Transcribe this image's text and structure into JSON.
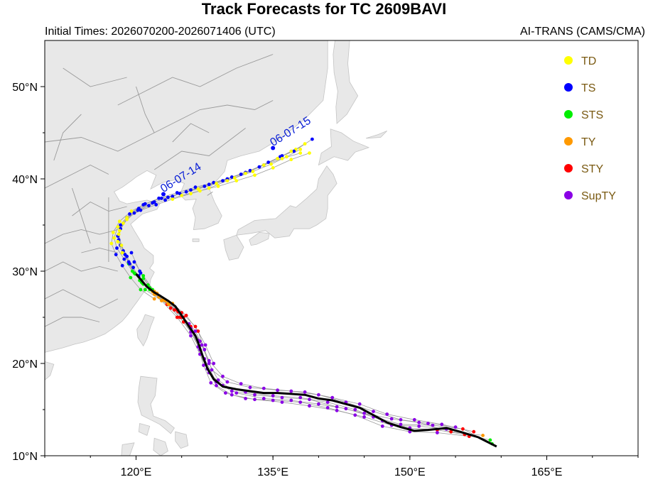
{
  "header": {
    "title": "Track Forecasts for TC 2609BAVI",
    "initial_times": "Initial Times: 2026070200-2026071406 (UTC)",
    "source": "AI-TRANS (CAMS/CMA)"
  },
  "map": {
    "lon_range": [
      110,
      175
    ],
    "lat_range": [
      10,
      55
    ],
    "lat_ticks": [
      "10°N",
      "20°N",
      "30°N",
      "40°N",
      "50°N"
    ],
    "lon_ticks": [
      "120°E",
      "135°E",
      "150°E",
      "165°E"
    ],
    "land_color": "#e8e8e8",
    "land_stroke": "#c4c4c4",
    "ocean_color": "#ffffff",
    "border_color": "#9a9a9a"
  },
  "legend": {
    "items": [
      {
        "label": "TD",
        "color": "#ffff00"
      },
      {
        "label": "TS",
        "color": "#0000ff"
      },
      {
        "label": "STS",
        "color": "#00ee00"
      },
      {
        "label": "TY",
        "color": "#ff9900"
      },
      {
        "label": "STY",
        "color": "#ff0000"
      },
      {
        "label": "SupTY",
        "color": "#8a00e6"
      }
    ]
  },
  "date_labels": [
    {
      "text": "06-07-14",
      "lon": 123.0,
      "lat": 38.5
    },
    {
      "text": "06-07-15",
      "lon": 135.0,
      "lat": 43.5
    }
  ],
  "observed_track": {
    "color": "#000000",
    "points": [
      [
        159.5,
        11.0
      ],
      [
        157.5,
        12.0
      ],
      [
        155.5,
        12.6
      ],
      [
        154.0,
        13.0
      ],
      [
        152.0,
        12.8
      ],
      [
        150.5,
        12.7
      ],
      [
        149.0,
        13.1
      ],
      [
        147.5,
        13.6
      ],
      [
        146.0,
        14.4
      ],
      [
        144.5,
        15.2
      ],
      [
        143.0,
        15.6
      ],
      [
        141.5,
        16.0
      ],
      [
        140.0,
        16.2
      ],
      [
        138.5,
        16.6
      ],
      [
        137.0,
        16.7
      ],
      [
        135.5,
        16.8
      ],
      [
        134.0,
        16.8
      ],
      [
        132.5,
        17.0
      ],
      [
        131.0,
        17.2
      ],
      [
        129.5,
        17.5
      ],
      [
        128.5,
        18.3
      ],
      [
        127.8,
        19.5
      ],
      [
        127.3,
        20.8
      ],
      [
        126.9,
        22.0
      ],
      [
        126.5,
        23.0
      ],
      [
        125.8,
        24.0
      ],
      [
        125.0,
        25.2
      ],
      [
        124.3,
        26.2
      ],
      [
        123.5,
        26.8
      ],
      [
        122.7,
        27.3
      ],
      [
        122.0,
        27.7
      ],
      [
        121.2,
        28.3
      ],
      [
        120.6,
        29.0
      ],
      [
        120.0,
        29.7
      ]
    ]
  },
  "forecast_tracks": [
    {
      "points": [
        [
          158.8,
          11.7
        ],
        [
          156.0,
          12.3
        ],
        [
          153.0,
          12.8
        ],
        [
          150.0,
          13.0
        ],
        [
          147.0,
          13.8
        ],
        [
          144.0,
          15.0
        ],
        [
          141.0,
          15.8
        ],
        [
          138.0,
          16.3
        ],
        [
          135.0,
          16.5
        ],
        [
          132.0,
          16.9
        ],
        [
          129.5,
          17.6
        ],
        [
          128.0,
          19.0
        ],
        [
          127.0,
          21.0
        ],
        [
          126.0,
          23.0
        ],
        [
          124.5,
          25.0
        ],
        [
          122.8,
          26.8
        ],
        [
          121.0,
          28.0
        ]
      ],
      "intensity": [
        2,
        4,
        4,
        5,
        5,
        5,
        5,
        5,
        5,
        5,
        5,
        5,
        5,
        5,
        4,
        3,
        2
      ]
    },
    {
      "points": [
        [
          159.0,
          11.3
        ],
        [
          155.8,
          12.9
        ],
        [
          152.5,
          13.3
        ],
        [
          149.0,
          13.4
        ],
        [
          146.0,
          14.2
        ],
        [
          143.0,
          15.1
        ],
        [
          140.0,
          15.6
        ],
        [
          137.0,
          16.0
        ],
        [
          134.0,
          16.2
        ],
        [
          131.0,
          16.8
        ],
        [
          129.0,
          18.2
        ],
        [
          128.0,
          20.0
        ],
        [
          127.2,
          22.0
        ],
        [
          126.0,
          24.0
        ],
        [
          124.2,
          25.8
        ],
        [
          122.5,
          27.2
        ],
        [
          121.3,
          28.5
        ],
        [
          120.5,
          29.8
        ]
      ],
      "intensity": [
        2,
        4,
        5,
        5,
        5,
        5,
        5,
        5,
        5,
        5,
        5,
        5,
        5,
        4,
        4,
        3,
        2,
        1
      ]
    },
    {
      "points": [
        [
          158.0,
          12.2
        ],
        [
          154.5,
          12.6
        ],
        [
          151.0,
          13.6
        ],
        [
          148.0,
          14.0
        ],
        [
          145.0,
          14.6
        ],
        [
          142.0,
          15.3
        ],
        [
          139.0,
          16.1
        ],
        [
          136.0,
          16.3
        ],
        [
          133.0,
          16.6
        ],
        [
          130.5,
          17.0
        ],
        [
          128.8,
          18.0
        ],
        [
          127.5,
          20.5
        ],
        [
          126.8,
          22.5
        ],
        [
          125.2,
          24.5
        ],
        [
          123.8,
          26.0
        ],
        [
          122.0,
          27.8
        ],
        [
          120.8,
          29.5
        ],
        [
          119.8,
          31.0
        ]
      ],
      "intensity": [
        3,
        4,
        5,
        5,
        5,
        5,
        5,
        5,
        5,
        5,
        5,
        5,
        5,
        4,
        4,
        3,
        2,
        1
      ]
    },
    {
      "points": [
        [
          157.0,
          12.6
        ],
        [
          153.5,
          13.4
        ],
        [
          150.5,
          13.9
        ],
        [
          147.5,
          14.5
        ],
        [
          144.5,
          15.6
        ],
        [
          141.5,
          16.3
        ],
        [
          138.5,
          16.9
        ],
        [
          135.5,
          17.1
        ],
        [
          132.5,
          17.4
        ],
        [
          130.0,
          18.0
        ],
        [
          128.3,
          19.3
        ],
        [
          127.5,
          21.5
        ],
        [
          126.8,
          23.5
        ],
        [
          125.5,
          25.2
        ],
        [
          124.0,
          26.5
        ],
        [
          122.3,
          27.6
        ]
      ],
      "intensity": [
        4,
        5,
        5,
        5,
        5,
        5,
        5,
        5,
        5,
        5,
        5,
        5,
        4,
        4,
        3,
        3
      ]
    },
    {
      "points": [
        [
          156.5,
          12.1
        ],
        [
          153.0,
          12.5
        ],
        [
          150.0,
          12.6
        ],
        [
          147.0,
          13.2
        ],
        [
          144.0,
          14.4
        ],
        [
          141.0,
          15.2
        ],
        [
          138.0,
          15.8
        ],
        [
          135.0,
          16.0
        ],
        [
          132.0,
          16.2
        ],
        [
          129.8,
          16.8
        ],
        [
          128.2,
          17.9
        ],
        [
          127.4,
          19.8
        ],
        [
          126.8,
          21.8
        ],
        [
          126.0,
          23.8
        ],
        [
          124.6,
          25.6
        ],
        [
          123.0,
          26.9
        ],
        [
          121.8,
          28.0
        ],
        [
          120.8,
          29.2
        ]
      ],
      "intensity": [
        4,
        5,
        5,
        5,
        5,
        5,
        5,
        5,
        5,
        5,
        5,
        5,
        5,
        5,
        4,
        3,
        2,
        2
      ]
    },
    {
      "points": [
        [
          155.0,
          13.1
        ],
        [
          152.0,
          13.5
        ],
        [
          149.0,
          13.9
        ],
        [
          146.0,
          14.8
        ],
        [
          143.0,
          15.8
        ],
        [
          140.0,
          16.6
        ],
        [
          137.0,
          17.0
        ],
        [
          134.0,
          17.3
        ],
        [
          131.5,
          17.8
        ],
        [
          129.5,
          18.6
        ],
        [
          128.0,
          20.3
        ],
        [
          127.0,
          22.4
        ],
        [
          125.8,
          24.3
        ],
        [
          124.5,
          25.8
        ],
        [
          123.0,
          27.0
        ],
        [
          121.5,
          28.2
        ],
        [
          120.4,
          30.0
        ],
        [
          119.5,
          32.0
        ]
      ],
      "intensity": [
        5,
        5,
        5,
        5,
        5,
        5,
        5,
        5,
        5,
        5,
        5,
        5,
        5,
        4,
        3,
        2,
        1,
        1
      ]
    },
    {
      "points": [
        [
          154.0,
          12.9
        ],
        [
          151.0,
          13.2
        ],
        [
          148.0,
          13.3
        ],
        [
          145.0,
          14.2
        ],
        [
          142.0,
          14.9
        ],
        [
          139.0,
          15.4
        ],
        [
          136.0,
          15.8
        ],
        [
          133.0,
          16.1
        ],
        [
          130.5,
          16.6
        ],
        [
          128.8,
          17.6
        ],
        [
          127.8,
          19.4
        ],
        [
          127.0,
          21.5
        ],
        [
          126.0,
          23.4
        ],
        [
          124.8,
          25.0
        ],
        [
          123.4,
          26.4
        ],
        [
          122.0,
          27.5
        ]
      ],
      "intensity": [
        5,
        5,
        5,
        5,
        5,
        5,
        5,
        5,
        5,
        5,
        5,
        5,
        5,
        4,
        4,
        3
      ]
    },
    {
      "points": [
        [
          128.5,
          20.0
        ],
        [
          127.6,
          22.0
        ],
        [
          126.5,
          24.0
        ],
        [
          125.0,
          25.5
        ],
        [
          123.2,
          26.8
        ],
        [
          121.8,
          27.8
        ],
        [
          120.6,
          28.8
        ],
        [
          119.8,
          29.8
        ],
        [
          119.2,
          30.8
        ],
        [
          118.8,
          31.8
        ],
        [
          118.3,
          32.8
        ],
        [
          118.0,
          33.8
        ],
        [
          118.3,
          35.0
        ],
        [
          119.3,
          36.2
        ],
        [
          120.8,
          37.2
        ],
        [
          122.5,
          37.9
        ],
        [
          124.5,
          38.5
        ],
        [
          126.5,
          39.1
        ],
        [
          128.5,
          39.6
        ],
        [
          130.5,
          40.2
        ],
        [
          132.5,
          40.9
        ],
        [
          134.5,
          41.8
        ],
        [
          136.0,
          42.5
        ],
        [
          137.5,
          43.2
        ],
        [
          138.5,
          43.8
        ]
      ],
      "intensity": [
        5,
        5,
        4,
        4,
        3,
        3,
        2,
        2,
        2,
        1,
        1,
        1,
        1,
        1,
        1,
        1,
        1,
        1,
        1,
        1,
        1,
        1,
        1,
        0,
        0
      ]
    },
    {
      "points": [
        [
          127.5,
          21.5
        ],
        [
          126.5,
          23.5
        ],
        [
          125.2,
          25.0
        ],
        [
          123.6,
          26.4
        ],
        [
          122.1,
          27.5
        ],
        [
          120.8,
          28.6
        ],
        [
          119.9,
          29.7
        ],
        [
          119.2,
          31.0
        ],
        [
          118.6,
          32.2
        ],
        [
          118.1,
          33.4
        ],
        [
          118.3,
          34.6
        ],
        [
          119.0,
          35.8
        ],
        [
          120.3,
          36.8
        ],
        [
          122.0,
          37.5
        ],
        [
          124.0,
          38.1
        ],
        [
          126.0,
          38.8
        ],
        [
          128.0,
          39.4
        ],
        [
          130.0,
          40.0
        ],
        [
          132.0,
          40.7
        ],
        [
          134.0,
          41.5
        ],
        [
          135.8,
          42.4
        ],
        [
          137.3,
          43.0
        ],
        [
          139.3,
          44.3
        ]
      ],
      "intensity": [
        5,
        5,
        4,
        3,
        3,
        2,
        2,
        1,
        1,
        1,
        1,
        1,
        1,
        1,
        1,
        1,
        1,
        1,
        1,
        1,
        1,
        1,
        1
      ]
    },
    {
      "points": [
        [
          125.0,
          25.0
        ],
        [
          123.5,
          26.5
        ],
        [
          122.0,
          27.6
        ],
        [
          120.7,
          28.7
        ],
        [
          119.6,
          30.0
        ],
        [
          118.7,
          31.3
        ],
        [
          117.9,
          32.5
        ],
        [
          117.6,
          33.6
        ],
        [
          118.0,
          34.8
        ],
        [
          119.0,
          35.8
        ],
        [
          120.5,
          36.6
        ],
        [
          122.2,
          37.2
        ],
        [
          124.0,
          37.8
        ],
        [
          126.0,
          38.4
        ],
        [
          128.0,
          39.0
        ],
        [
          130.0,
          39.8
        ],
        [
          132.0,
          40.6
        ],
        [
          134.0,
          41.5
        ],
        [
          136.0,
          42.2
        ],
        [
          138.0,
          42.8
        ]
      ],
      "intensity": [
        4,
        3,
        3,
        2,
        2,
        1,
        1,
        0,
        0,
        0,
        1,
        1,
        0,
        0,
        0,
        0,
        0,
        0,
        0,
        0
      ]
    },
    {
      "points": [
        [
          122.0,
          27.0
        ],
        [
          120.5,
          28.0
        ],
        [
          119.4,
          29.3
        ],
        [
          118.5,
          30.6
        ],
        [
          117.8,
          31.8
        ],
        [
          117.3,
          33.0
        ],
        [
          117.5,
          34.2
        ],
        [
          118.2,
          35.4
        ],
        [
          119.5,
          36.5
        ],
        [
          121.0,
          37.3
        ],
        [
          122.8,
          37.9
        ],
        [
          124.8,
          38.4
        ],
        [
          126.8,
          38.9
        ],
        [
          128.8,
          39.5
        ],
        [
          130.8,
          40.1
        ],
        [
          132.8,
          40.8
        ],
        [
          134.8,
          41.6
        ],
        [
          136.5,
          42.4
        ],
        [
          138.0,
          43.2
        ]
      ],
      "intensity": [
        3,
        2,
        2,
        1,
        1,
        0,
        0,
        0,
        0,
        1,
        1,
        1,
        0,
        0,
        0,
        0,
        0,
        0,
        0
      ]
    },
    {
      "points": [
        [
          120.3,
          29.5
        ],
        [
          119.3,
          30.8
        ],
        [
          118.5,
          32.0
        ],
        [
          118.0,
          33.2
        ],
        [
          118.2,
          34.4
        ],
        [
          119.0,
          35.6
        ],
        [
          120.2,
          36.6
        ],
        [
          121.8,
          37.4
        ],
        [
          123.5,
          38.0
        ],
        [
          125.5,
          38.6
        ],
        [
          127.5,
          39.2
        ],
        [
          129.5,
          39.8
        ],
        [
          131.5,
          40.5
        ],
        [
          133.5,
          41.3
        ],
        [
          135.5,
          42.2
        ],
        [
          137.0,
          43.0
        ]
      ],
      "intensity": [
        1,
        1,
        0,
        0,
        0,
        0,
        1,
        1,
        1,
        1,
        1,
        1,
        1,
        1,
        0,
        0
      ]
    },
    {
      "points": [
        [
          121.5,
          28.0
        ],
        [
          120.4,
          29.0
        ],
        [
          119.7,
          30.4
        ],
        [
          119.0,
          31.6
        ],
        [
          118.4,
          32.8
        ],
        [
          118.1,
          34.0
        ],
        [
          118.6,
          35.2
        ],
        [
          119.8,
          36.3
        ],
        [
          121.4,
          37.1
        ],
        [
          123.2,
          37.7
        ],
        [
          125.0,
          38.2
        ],
        [
          127.0,
          38.7
        ],
        [
          129.0,
          39.2
        ],
        [
          131.0,
          39.8
        ],
        [
          133.0,
          40.4
        ],
        [
          135.0,
          41.2
        ],
        [
          137.0,
          42.1
        ],
        [
          139.0,
          42.8
        ]
      ],
      "intensity": [
        2,
        2,
        1,
        1,
        0,
        0,
        0,
        1,
        1,
        1,
        0,
        0,
        0,
        0,
        0,
        0,
        0,
        0
      ]
    }
  ]
}
